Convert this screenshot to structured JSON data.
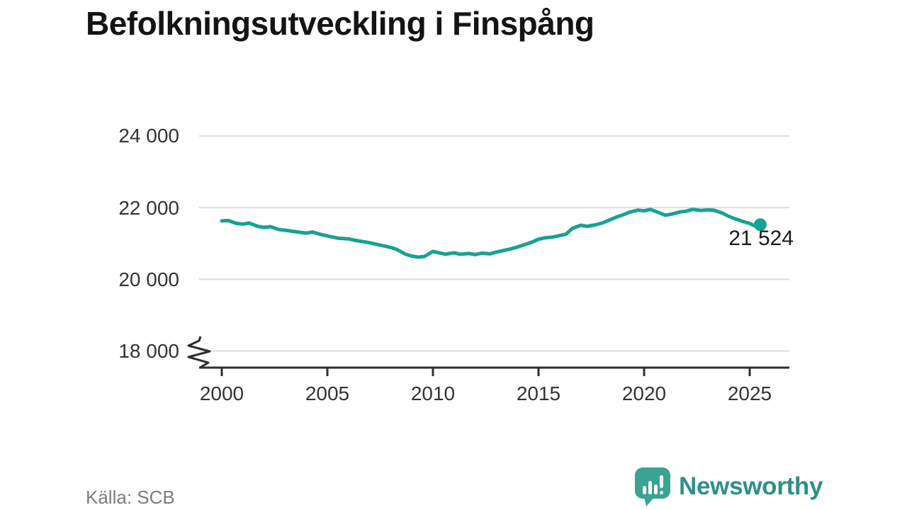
{
  "title": "Befolkningsutveckling i Finspång",
  "source": "Källa: SCB",
  "logo": {
    "brand": "Newsworthy"
  },
  "colors": {
    "line": "#17a294",
    "grid": "#dcdcdc",
    "axis": "#2f2f2f",
    "logo_text": "#2b9186",
    "logo_icon": "#3aa392"
  },
  "chart_data": {
    "type": "line",
    "title": "Befolkningsutveckling i Finspång",
    "series_name": "Befolkning i Finspång",
    "xlabel": "",
    "ylabel": "",
    "grid": "horizontal",
    "legend": "none",
    "axis_break": true,
    "ylim": [
      18000,
      24000
    ],
    "yticks": [
      24000,
      22000,
      20000,
      18000
    ],
    "ytick_labels": [
      "24 000",
      "22 000",
      "20 000",
      "18 000"
    ],
    "xticks": [
      2000,
      2005,
      2010,
      2015,
      2020,
      2025
    ],
    "xtick_labels": [
      "2000",
      "2005",
      "2010",
      "2015",
      "2020",
      "2025"
    ],
    "end_label": "21 524",
    "end_value": 21524,
    "x": [
      2000,
      2000.3,
      2000.7,
      2001,
      2001.3,
      2001.7,
      2002,
      2002.3,
      2002.7,
      2003,
      2003.5,
      2004,
      2004.3,
      2004.7,
      2005,
      2005.5,
      2006,
      2006.3,
      2006.7,
      2007,
      2007.3,
      2007.7,
      2008,
      2008.3,
      2008.7,
      2009,
      2009.3,
      2009.6,
      2010,
      2010.3,
      2010.6,
      2011,
      2011.3,
      2011.7,
      2012,
      2012.3,
      2012.7,
      2013,
      2013.3,
      2013.7,
      2014,
      2014.3,
      2014.7,
      2015,
      2015.3,
      2015.7,
      2016,
      2016.3,
      2016.6,
      2017,
      2017.3,
      2017.7,
      2018,
      2018.3,
      2018.7,
      2019,
      2019.3,
      2019.7,
      2020,
      2020.3,
      2020.7,
      2021,
      2021.3,
      2021.7,
      2022,
      2022.3,
      2022.7,
      2023,
      2023.3,
      2023.7,
      2024,
      2024.3,
      2024.7,
      2025,
      2025.2,
      2025.5
    ],
    "values": [
      21630,
      21640,
      21560,
      21540,
      21570,
      21480,
      21450,
      21470,
      21390,
      21370,
      21330,
      21290,
      21320,
      21250,
      21210,
      21150,
      21130,
      21090,
      21050,
      21020,
      20980,
      20930,
      20890,
      20830,
      20700,
      20650,
      20620,
      20640,
      20780,
      20740,
      20700,
      20740,
      20700,
      20720,
      20690,
      20730,
      20710,
      20760,
      20800,
      20850,
      20900,
      20960,
      21040,
      21120,
      21160,
      21180,
      21220,
      21260,
      21420,
      21510,
      21480,
      21520,
      21570,
      21640,
      21740,
      21800,
      21870,
      21930,
      21910,
      21950,
      21860,
      21790,
      21820,
      21880,
      21900,
      21950,
      21920,
      21940,
      21930,
      21850,
      21760,
      21690,
      21610,
      21560,
      21500,
      21524
    ]
  }
}
